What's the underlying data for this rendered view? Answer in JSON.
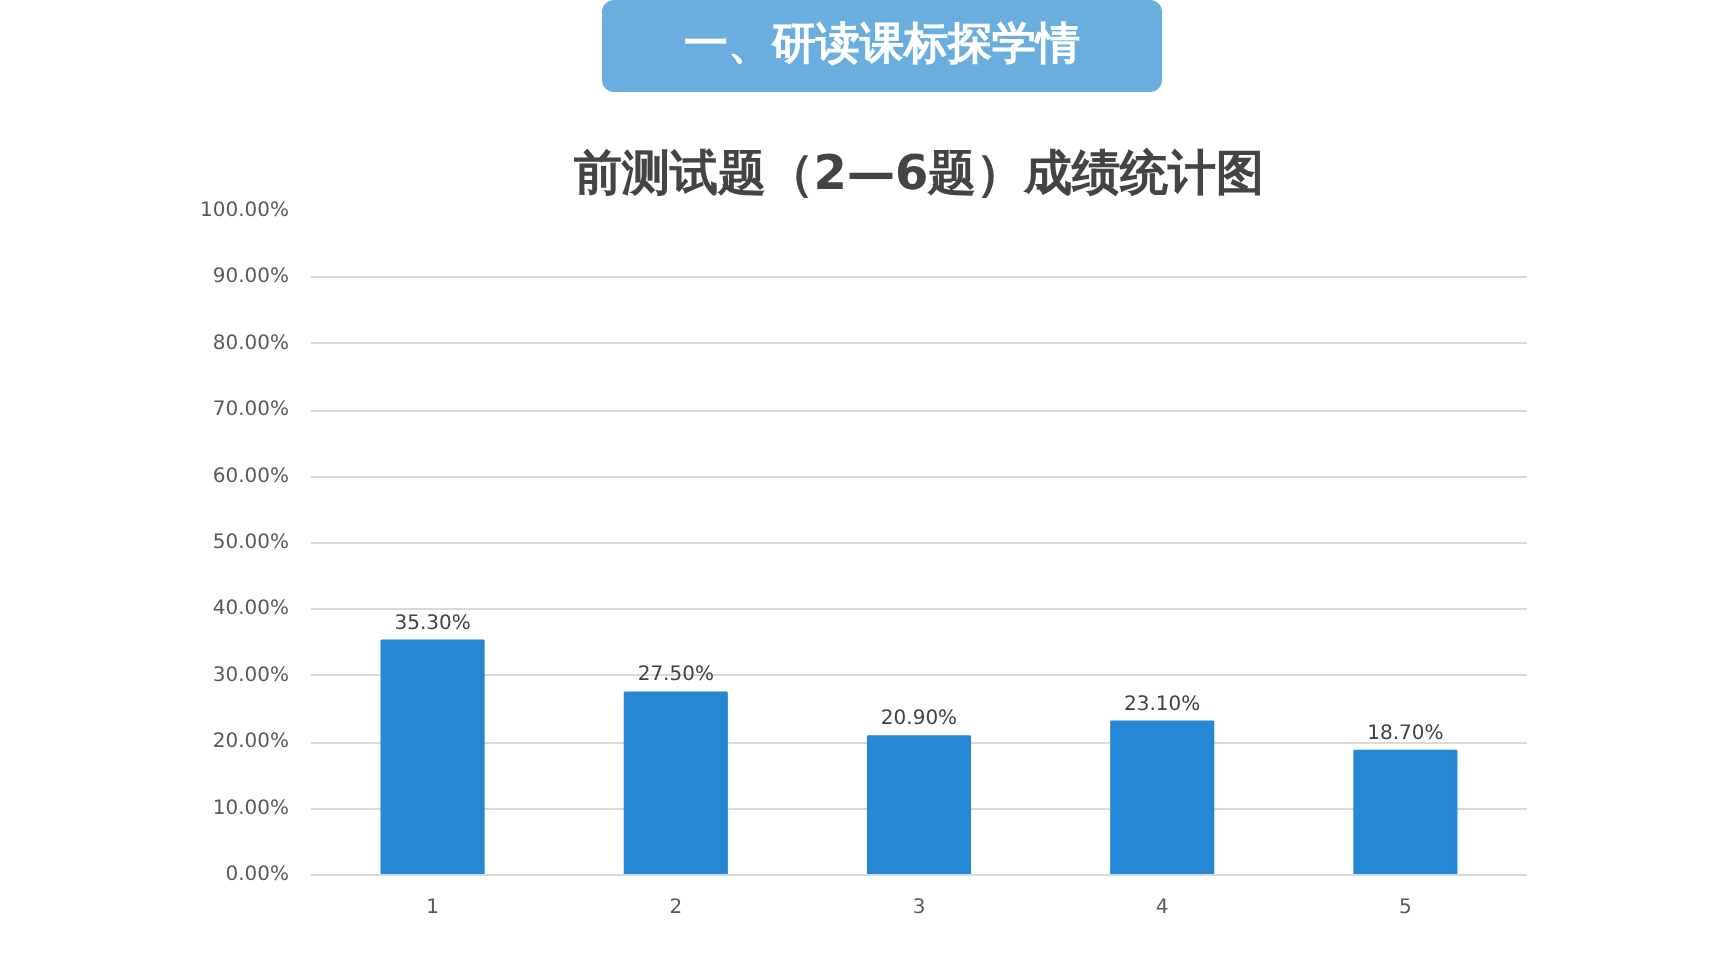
{
  "chart_data": {
    "type": "bar",
    "subtitle": "一、研读课标探学情",
    "title": "前测试题（2—6题）成绩统计图",
    "categories": [
      "1",
      "2",
      "3",
      "4",
      "5"
    ],
    "values": [
      35.3,
      27.5,
      20.9,
      23.1,
      18.7
    ],
    "value_labels": [
      "35.30%",
      "27.50%",
      "20.90%",
      "23.10%",
      "18.70%"
    ],
    "color": "#2688d4",
    "ylim": [
      0,
      100
    ],
    "yticks": [
      {
        "value": 0,
        "label": "0.00%"
      },
      {
        "value": 10,
        "label": "10.00%"
      },
      {
        "value": 20,
        "label": "20.00%"
      },
      {
        "value": 30,
        "label": "30.00%"
      },
      {
        "value": 40,
        "label": "40.00%"
      },
      {
        "value": 50,
        "label": "50.00%"
      },
      {
        "value": 60,
        "label": "60.00%"
      },
      {
        "value": 70,
        "label": "70.00%"
      },
      {
        "value": 80,
        "label": "80.00%"
      },
      {
        "value": 90,
        "label": "90.00%"
      },
      {
        "value": 100,
        "label": "100.00%"
      }
    ],
    "grid": "y"
  }
}
